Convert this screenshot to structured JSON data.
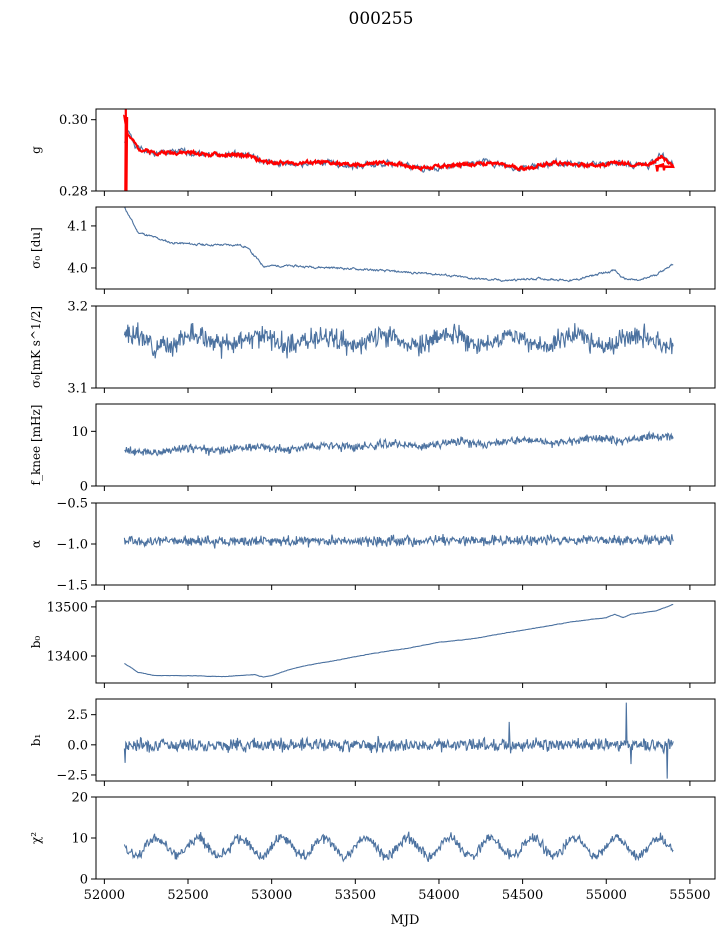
{
  "figure": {
    "title": "000255",
    "xlabel": "MJD"
  },
  "chart_data": [
    {
      "type": "line",
      "ylabel": "g",
      "xlim": [
        51950,
        55650
      ],
      "ylim": [
        0.28,
        0.303
      ],
      "yticks": [
        0.28,
        0.3
      ],
      "ytick_labels": [
        "0.28",
        "0.30"
      ],
      "series": [
        {
          "color": "#4c72a0",
          "pattern": "drift",
          "noise": 0.0007,
          "x": [
            52120,
            52140,
            52200,
            52300,
            52500,
            52700,
            52850,
            52950,
            53100,
            53300,
            53500,
            53700,
            53900,
            54100,
            54300,
            54500,
            54700,
            54900,
            55100,
            55250,
            55330,
            55400
          ],
          "y": [
            0.2935,
            0.2965,
            0.292,
            0.2905,
            0.291,
            0.29,
            0.2905,
            0.288,
            0.2875,
            0.288,
            0.287,
            0.288,
            0.286,
            0.287,
            0.288,
            0.286,
            0.288,
            0.287,
            0.288,
            0.287,
            0.29,
            0.288
          ]
        },
        {
          "color": "#ff0000",
          "pattern": "drift",
          "noise": 0.0004,
          "x": [
            52120,
            52140,
            52200,
            52300,
            52500,
            52700,
            52850,
            52950,
            53100,
            53300,
            53500,
            53700,
            53900,
            54100,
            54300,
            54500,
            54700,
            54900,
            55100,
            55250,
            55330,
            55400
          ],
          "y": [
            0.301,
            0.296,
            0.292,
            0.2908,
            0.2908,
            0.29,
            0.29,
            0.2882,
            0.2878,
            0.288,
            0.2872,
            0.288,
            0.2865,
            0.2872,
            0.288,
            0.2862,
            0.288,
            0.2872,
            0.2878,
            0.2875,
            0.2895,
            0.287
          ]
        }
      ]
    },
    {
      "type": "line",
      "ylabel": "σ₀ [du]",
      "xlim": [
        51950,
        55650
      ],
      "ylim": [
        3.95,
        4.145
      ],
      "yticks": [
        4.0,
        4.1
      ],
      "ytick_labels": [
        "4.0",
        "4.1"
      ],
      "series": [
        {
          "color": "#4c72a0",
          "pattern": "drift",
          "noise": 0.002,
          "x": [
            52120,
            52200,
            52400,
            52600,
            52800,
            52850,
            52950,
            53100,
            53400,
            53600,
            53800,
            54000,
            54200,
            54400,
            54600,
            54800,
            55000,
            55050,
            55100,
            55200,
            55300,
            55400
          ],
          "y": [
            4.145,
            4.085,
            4.06,
            4.055,
            4.055,
            4.05,
            4.005,
            4.005,
            4.0,
            3.995,
            3.99,
            3.985,
            3.975,
            3.97,
            3.975,
            3.97,
            3.99,
            3.995,
            3.975,
            3.97,
            3.985,
            4.01
          ]
        }
      ]
    },
    {
      "type": "line",
      "ylabel": "σ₀[mK s^1/2]",
      "xlim": [
        51950,
        55650
      ],
      "ylim": [
        3.1,
        3.2
      ],
      "yticks": [
        3.1,
        3.2
      ],
      "ytick_labels": [
        "3.1",
        "3.2"
      ],
      "series": [
        {
          "color": "#4c72a0",
          "pattern": "noise",
          "base": 3.158,
          "amp": 0.007,
          "period": 380,
          "noise": 0.009,
          "seed": 3,
          "x": [
            52120,
            55400
          ],
          "y": [
            3.16,
            3.14
          ]
        }
      ]
    },
    {
      "type": "line",
      "ylabel": "f_knee [mHz]",
      "xlim": [
        51950,
        55650
      ],
      "ylim": [
        0,
        15
      ],
      "yticks": [
        0,
        10
      ],
      "ytick_labels": [
        "0",
        "10"
      ],
      "series": [
        {
          "color": "#4c72a0",
          "pattern": "noise",
          "base": 6.3,
          "trend": 2.5,
          "amp": 0.3,
          "period": 400,
          "noise": 0.55,
          "seed": 4,
          "x": [
            52120,
            55400
          ],
          "y": [
            6.3,
            8.8
          ]
        }
      ]
    },
    {
      "type": "line",
      "ylabel": "α",
      "xlim": [
        51950,
        55650
      ],
      "ylim": [
        -1.5,
        -0.5
      ],
      "yticks": [
        -1.5,
        -1.0,
        -0.5
      ],
      "ytick_labels": [
        "−1.5",
        "−1.0",
        "−0.5"
      ],
      "series": [
        {
          "color": "#4c72a0",
          "pattern": "noise",
          "base": -0.97,
          "trend": 0.02,
          "amp": 0.0,
          "period": 400,
          "noise": 0.045,
          "seed": 5,
          "x": [
            52120,
            55400
          ],
          "y": [
            -0.97,
            -0.95
          ]
        }
      ]
    },
    {
      "type": "line",
      "ylabel": "b₀",
      "xlim": [
        51950,
        55650
      ],
      "ylim": [
        13345,
        13512
      ],
      "yticks": [
        13400,
        13500
      ],
      "ytick_labels": [
        "13400",
        "13500"
      ],
      "series": [
        {
          "color": "#4c72a0",
          "pattern": "drift",
          "noise": 0.3,
          "x": [
            52120,
            52200,
            52300,
            52500,
            52700,
            52900,
            52950,
            53000,
            53100,
            53200,
            53400,
            53600,
            53800,
            54000,
            54200,
            54400,
            54600,
            54800,
            55000,
            55050,
            55100,
            55150,
            55300,
            55400
          ],
          "y": [
            13385,
            13367,
            13360,
            13360,
            13358,
            13362,
            13357,
            13360,
            13372,
            13380,
            13392,
            13405,
            13415,
            13428,
            13435,
            13447,
            13458,
            13470,
            13478,
            13485,
            13478,
            13485,
            13492,
            13505
          ]
        }
      ]
    },
    {
      "type": "line",
      "ylabel": "b₁",
      "xlim": [
        51950,
        55650
      ],
      "ylim": [
        -3.0,
        3.8
      ],
      "yticks": [
        -2.5,
        0.0,
        2.5
      ],
      "ytick_labels": [
        "−2.5",
        "0.0",
        "2.5"
      ],
      "series": [
        {
          "color": "#4c72a0",
          "pattern": "noise",
          "base": 0.0,
          "trend": 0.0,
          "amp": 0.0,
          "period": 400,
          "noise": 0.38,
          "seed": 7,
          "spikes": [
            [
              52125,
              -1.5
            ],
            [
              54420,
              1.9
            ],
            [
              55120,
              3.5
            ],
            [
              55365,
              -2.8
            ],
            [
              55150,
              -1.6
            ]
          ],
          "x": [
            52120,
            55400
          ],
          "y": [
            0.0,
            0.0
          ]
        }
      ]
    },
    {
      "type": "line",
      "ylabel": "χ²",
      "xlim": [
        51950,
        55650
      ],
      "ylim": [
        0,
        20
      ],
      "yticks": [
        0,
        10,
        20
      ],
      "ytick_labels": [
        "0",
        "10",
        "20"
      ],
      "series": [
        {
          "color": "#4c72a0",
          "pattern": "noise",
          "base": 7.8,
          "trend": 0.0,
          "amp": 2.2,
          "period": 250,
          "noise": 0.9,
          "seed": 8,
          "x": [
            52120,
            55400
          ],
          "y": [
            7.5,
            8.5
          ]
        }
      ]
    }
  ],
  "x_axis": {
    "xlim": [
      51950,
      55650
    ],
    "ticks": [
      52000,
      52500,
      53000,
      53500,
      54000,
      54500,
      55000,
      55500
    ],
    "tick_labels": [
      "52000",
      "52500",
      "53000",
      "53500",
      "54000",
      "54500",
      "55000",
      "55500"
    ]
  }
}
